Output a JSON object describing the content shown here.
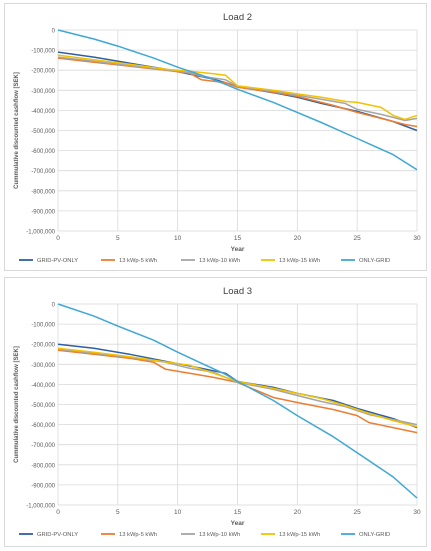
{
  "colors": {
    "GRID-PV-ONLY": "#2e5fa3",
    "13 kWp-5 kWh": "#ed7d31",
    "13 kWp-10 kWh": "#a5a5a5",
    "13 kWp-15 kWh": "#f2c200",
    "ONLY-GRID": "#3fa7d6",
    "grid": "#d9d9d9",
    "axis_text": "#595959"
  },
  "chart_data": [
    {
      "type": "line",
      "title": "Load 2",
      "xlabel": "Year",
      "ylabel": "Cummulative discounted cashflow [SEK]",
      "xlim": [
        0,
        30
      ],
      "ylim": [
        -1000000,
        0
      ],
      "x_ticks": [
        0,
        5,
        10,
        15,
        20,
        25,
        30
      ],
      "y_ticks": [
        "0",
        "-100,000",
        "-200,000",
        "-300,000",
        "-400,000",
        "-500,000",
        "-600,000",
        "-700,000",
        "-800,000",
        "-900,000",
        "-1,000,000"
      ],
      "grid": true,
      "legend": "bottom",
      "series": [
        {
          "name": "GRID-PV-ONLY",
          "points": [
            [
              0,
              -110000
            ],
            [
              3,
              -135000
            ],
            [
              6,
              -165000
            ],
            [
              9,
              -195000
            ],
            [
              11,
              -220000
            ],
            [
              13,
              -245000
            ],
            [
              14,
              -262000
            ],
            [
              15,
              -282000
            ],
            [
              18,
              -312000
            ],
            [
              20,
              -335000
            ],
            [
              22,
              -365000
            ],
            [
              25,
              -405000
            ],
            [
              28,
              -455000
            ],
            [
              30,
              -500000
            ]
          ]
        },
        {
          "name": "13 kWp-5 kWh",
          "points": [
            [
              0,
              -140000
            ],
            [
              3,
              -160000
            ],
            [
              6,
              -180000
            ],
            [
              9,
              -200000
            ],
            [
              11,
              -215000
            ],
            [
              12,
              -248000
            ],
            [
              14,
              -262000
            ],
            [
              15,
              -285000
            ],
            [
              18,
              -310000
            ],
            [
              20,
              -330000
            ],
            [
              23,
              -375000
            ],
            [
              25,
              -410000
            ],
            [
              27,
              -440000
            ],
            [
              29,
              -470000
            ],
            [
              30,
              -480000
            ]
          ]
        },
        {
          "name": "13 kWp-10 kWh",
          "points": [
            [
              0,
              -135000
            ],
            [
              3,
              -155000
            ],
            [
              6,
              -177000
            ],
            [
              9,
              -198000
            ],
            [
              11,
              -212000
            ],
            [
              12,
              -230000
            ],
            [
              14,
              -248000
            ],
            [
              15,
              -280000
            ],
            [
              18,
              -305000
            ],
            [
              20,
              -325000
            ],
            [
              22,
              -345000
            ],
            [
              24,
              -365000
            ],
            [
              25,
              -395000
            ],
            [
              27,
              -420000
            ],
            [
              28,
              -435000
            ],
            [
              29,
              -450000
            ],
            [
              30,
              -440000
            ]
          ]
        },
        {
          "name": "13 kWp-15 kWh",
          "points": [
            [
              0,
              -125000
            ],
            [
              3,
              -148000
            ],
            [
              6,
              -170000
            ],
            [
              9,
              -195000
            ],
            [
              11,
              -205000
            ],
            [
              13,
              -218000
            ],
            [
              14,
              -225000
            ],
            [
              15,
              -278000
            ],
            [
              18,
              -300000
            ],
            [
              20,
              -318000
            ],
            [
              22,
              -335000
            ],
            [
              24,
              -355000
            ],
            [
              25,
              -360000
            ],
            [
              27,
              -385000
            ],
            [
              28,
              -425000
            ],
            [
              29,
              -445000
            ],
            [
              30,
              -425000
            ]
          ]
        },
        {
          "name": "ONLY-GRID",
          "points": [
            [
              0,
              0
            ],
            [
              3,
              -45000
            ],
            [
              5,
              -80000
            ],
            [
              8,
              -140000
            ],
            [
              10,
              -185000
            ],
            [
              12,
              -225000
            ],
            [
              14,
              -270000
            ],
            [
              15,
              -295000
            ],
            [
              18,
              -360000
            ],
            [
              20,
              -410000
            ],
            [
              22,
              -460000
            ],
            [
              25,
              -540000
            ],
            [
              28,
              -620000
            ],
            [
              30,
              -695000
            ]
          ]
        }
      ]
    },
    {
      "type": "line",
      "title": "Load 3",
      "xlabel": "Year",
      "ylabel": "Cummulative discounted cashflow [SEK]",
      "xlim": [
        0,
        30
      ],
      "ylim": [
        -1000000,
        0
      ],
      "x_ticks": [
        0,
        5,
        10,
        15,
        20,
        25,
        30
      ],
      "y_ticks": [
        "0",
        "-100,000",
        "-200,000",
        "-300,000",
        "-400,000",
        "-500,000",
        "-600,000",
        "-700,000",
        "-800,000",
        "-900,000",
        "-1,000,000"
      ],
      "grid": true,
      "legend": "bottom",
      "series": [
        {
          "name": "GRID-PV-ONLY",
          "points": [
            [
              0,
              -200000
            ],
            [
              3,
              -220000
            ],
            [
              6,
              -250000
            ],
            [
              9,
              -285000
            ],
            [
              12,
              -320000
            ],
            [
              14,
              -345000
            ],
            [
              15,
              -385000
            ],
            [
              18,
              -415000
            ],
            [
              20,
              -445000
            ],
            [
              23,
              -480000
            ],
            [
              25,
              -520000
            ],
            [
              28,
              -570000
            ],
            [
              30,
              -615000
            ]
          ]
        },
        {
          "name": "13 kWp-5 kWh",
          "points": [
            [
              0,
              -230000
            ],
            [
              3,
              -250000
            ],
            [
              6,
              -270000
            ],
            [
              8,
              -290000
            ],
            [
              9,
              -325000
            ],
            [
              11,
              -345000
            ],
            [
              13,
              -365000
            ],
            [
              15,
              -390000
            ],
            [
              18,
              -465000
            ],
            [
              20,
              -490000
            ],
            [
              23,
              -525000
            ],
            [
              25,
              -555000
            ],
            [
              26,
              -590000
            ],
            [
              28,
              -615000
            ],
            [
              30,
              -640000
            ]
          ]
        },
        {
          "name": "13 kWp-10 kWh",
          "points": [
            [
              0,
              -225000
            ],
            [
              3,
              -245000
            ],
            [
              6,
              -265000
            ],
            [
              9,
              -290000
            ],
            [
              11,
              -320000
            ],
            [
              13,
              -340000
            ],
            [
              15,
              -390000
            ],
            [
              18,
              -425000
            ],
            [
              20,
              -455000
            ],
            [
              22,
              -485000
            ],
            [
              24,
              -510000
            ],
            [
              26,
              -550000
            ],
            [
              28,
              -575000
            ],
            [
              30,
              -600000
            ]
          ]
        },
        {
          "name": "13 kWp-15 kWh",
          "points": [
            [
              0,
              -220000
            ],
            [
              3,
              -240000
            ],
            [
              6,
              -262000
            ],
            [
              9,
              -288000
            ],
            [
              11,
              -305000
            ],
            [
              13,
              -345000
            ],
            [
              15,
              -385000
            ],
            [
              18,
              -420000
            ],
            [
              20,
              -445000
            ],
            [
              22,
              -470000
            ],
            [
              24,
              -505000
            ],
            [
              26,
              -545000
            ],
            [
              28,
              -580000
            ],
            [
              30,
              -610000
            ]
          ]
        },
        {
          "name": "ONLY-GRID",
          "points": [
            [
              0,
              0
            ],
            [
              3,
              -60000
            ],
            [
              5,
              -110000
            ],
            [
              8,
              -180000
            ],
            [
              10,
              -240000
            ],
            [
              12,
              -295000
            ],
            [
              14,
              -350000
            ],
            [
              15,
              -385000
            ],
            [
              18,
              -480000
            ],
            [
              20,
              -555000
            ],
            [
              23,
              -660000
            ],
            [
              25,
              -740000
            ],
            [
              28,
              -860000
            ],
            [
              30,
              -965000
            ]
          ]
        }
      ]
    }
  ]
}
